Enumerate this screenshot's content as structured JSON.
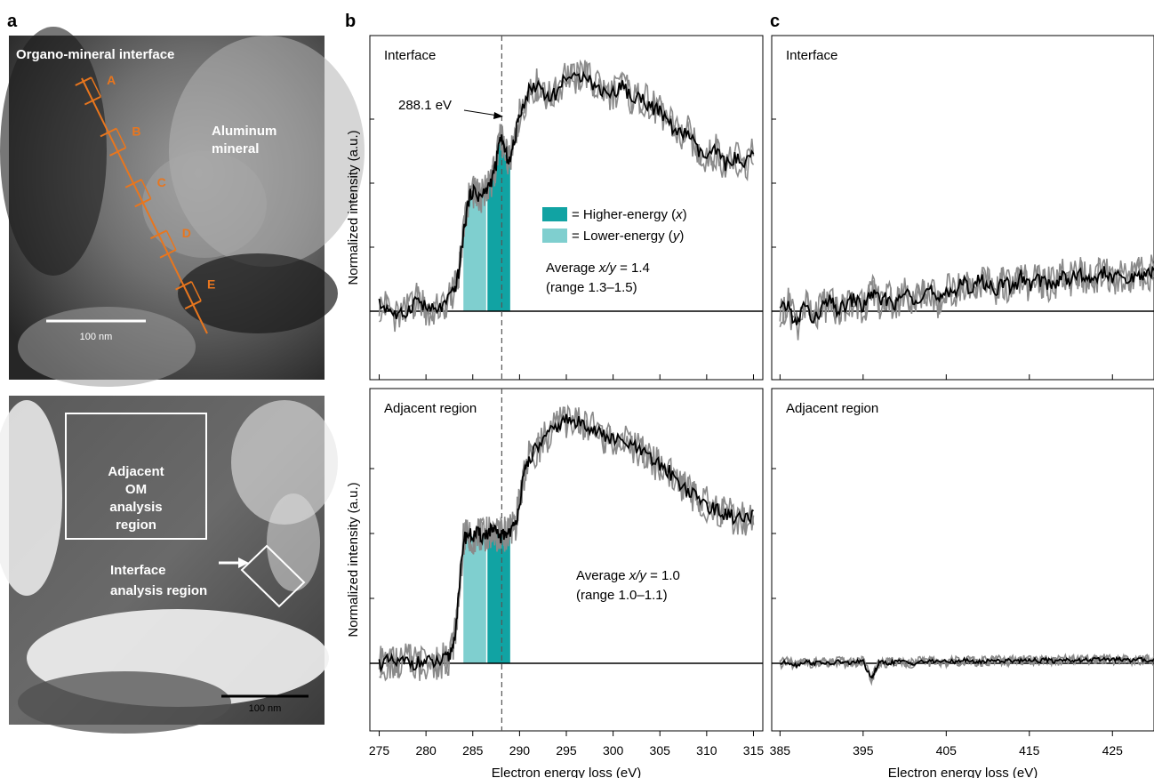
{
  "panel_letters": {
    "a": "a",
    "b": "b",
    "c": "c"
  },
  "panel_a": {
    "top_image": {
      "title": "Organo-mineral interface",
      "mineral_label": [
        "Aluminum",
        "mineral"
      ],
      "scale_bar": "100 nm",
      "points": [
        "A",
        "B",
        "C",
        "D",
        "E"
      ],
      "accent_color": "#e8761e"
    },
    "bottom_image": {
      "om_box_label": [
        "Adjacent",
        "OM",
        "analysis",
        "region"
      ],
      "interface_label": [
        "Interface",
        "analysis region"
      ],
      "scale_bar": "100 nm"
    }
  },
  "legend": {
    "higher": "= Higher-energy (",
    "higher_var": "x",
    "lower": "= Lower-energy (",
    "lower_var": "y",
    "close": ")",
    "higher_color": "#11a3a3",
    "lower_color": "#7fcfcf"
  },
  "annotations": {
    "peak_label": "288.1 eV",
    "interface_avg_prefix": "Average ",
    "interface_avg_var": "x/y",
    "interface_avg_value": " = 1.4",
    "interface_range": "(range 1.3–1.5)",
    "adjacent_avg_prefix": "Average ",
    "adjacent_avg_var": "x/y",
    "adjacent_avg_value": " = 1.0",
    "adjacent_range": "(range 1.0–1.1)"
  },
  "chart_data": [
    {
      "type": "line",
      "panel": "b-top",
      "title": "Interface",
      "xlabel": "",
      "ylabel": "Normalized intensity (a.u.)",
      "xlim": [
        274,
        316
      ],
      "ylim": [
        -1.1,
        4.1
      ],
      "dashed_line_x": 288.1,
      "shaded_regions": [
        {
          "name": "Lower-energy (y)",
          "x": [
            284,
            286.5
          ],
          "color": "#7fcfcf"
        },
        {
          "name": "Higher-energy (x)",
          "x": [
            286.5,
            289
          ],
          "color": "#11a3a3"
        }
      ],
      "series": [
        {
          "x": [
            275,
            276,
            277,
            278,
            279,
            280,
            281,
            282,
            283,
            283.5,
            284,
            284.5,
            285,
            285.5,
            286,
            286.5,
            287,
            287.5,
            288,
            288.5,
            289,
            289.5,
            290,
            291,
            292,
            293,
            294,
            295,
            296,
            297,
            298,
            299,
            300,
            301,
            302,
            303,
            304,
            305,
            306,
            307,
            308,
            309,
            310,
            311,
            312,
            313,
            314,
            315
          ],
          "values": [
            0.1,
            0.05,
            -0.1,
            0.0,
            0.2,
            0.05,
            0.0,
            0.1,
            0.3,
            0.6,
            1.2,
            1.7,
            1.9,
            1.8,
            1.8,
            1.9,
            2.05,
            2.3,
            2.75,
            2.45,
            2.35,
            2.7,
            3.1,
            3.45,
            3.55,
            3.35,
            3.4,
            3.7,
            3.6,
            3.75,
            3.5,
            3.45,
            3.4,
            3.55,
            3.3,
            3.35,
            3.2,
            3.1,
            2.95,
            2.75,
            2.8,
            2.5,
            2.4,
            2.5,
            2.3,
            2.4,
            2.25,
            2.45
          ]
        }
      ]
    },
    {
      "type": "line",
      "panel": "c-top",
      "title": "Interface",
      "xlabel": "",
      "ylabel": "",
      "xlim": [
        384,
        430
      ],
      "ylim": [
        -1.1,
        4.1
      ],
      "series": [
        {
          "x": [
            385,
            386,
            387,
            388,
            389,
            390,
            391,
            392,
            393,
            394,
            395,
            396,
            397,
            398,
            399,
            400,
            401,
            402,
            403,
            404,
            405,
            406,
            407,
            408,
            409,
            410,
            411,
            412,
            413,
            414,
            415,
            416,
            417,
            418,
            419,
            420,
            421,
            422,
            423,
            424,
            425,
            426,
            427,
            428,
            429,
            430
          ],
          "values": [
            0.0,
            0.1,
            -0.25,
            0.15,
            -0.2,
            0.05,
            0.15,
            0.0,
            0.1,
            0.2,
            0.05,
            0.3,
            0.15,
            0.2,
            0.1,
            0.3,
            0.2,
            0.25,
            0.35,
            0.1,
            0.35,
            0.3,
            0.45,
            0.35,
            0.5,
            0.4,
            0.35,
            0.45,
            0.35,
            0.55,
            0.4,
            0.5,
            0.45,
            0.4,
            0.55,
            0.5,
            0.6,
            0.45,
            0.55,
            0.6,
            0.5,
            0.55,
            0.45,
            0.6,
            0.55,
            0.65
          ]
        }
      ]
    },
    {
      "type": "line",
      "panel": "b-bottom",
      "title": "Adjacent region",
      "xlabel": "Electron energy loss (eV)",
      "ylabel": "Normalized intensity (a.u.)",
      "xlim": [
        274,
        316
      ],
      "ylim": [
        -1.1,
        4.1
      ],
      "x_ticks": [
        275,
        280,
        285,
        290,
        295,
        300,
        305,
        310,
        315
      ],
      "dashed_line_x": 288.1,
      "shaded_regions": [
        {
          "name": "Lower-energy (y)",
          "x": [
            284,
            286.5
          ],
          "color": "#7fcfcf"
        },
        {
          "name": "Higher-energy (x)",
          "x": [
            286.5,
            289
          ],
          "color": "#11a3a3"
        }
      ],
      "series": [
        {
          "x": [
            275,
            276,
            277,
            278,
            279,
            280,
            281,
            282,
            282.5,
            283,
            283.5,
            284,
            284.5,
            285,
            285.5,
            286,
            286.5,
            287,
            287.5,
            288,
            288.5,
            289,
            289.5,
            290,
            290.5,
            291,
            292,
            293,
            294,
            295,
            296,
            297,
            298,
            299,
            300,
            301,
            302,
            303,
            304,
            305,
            306,
            307,
            308,
            309,
            310,
            311,
            312,
            313,
            314,
            315
          ],
          "values": [
            0.0,
            0.02,
            0.0,
            0.03,
            0.0,
            0.02,
            0.0,
            0.05,
            0.1,
            0.35,
            1.0,
            1.9,
            2.0,
            1.95,
            2.0,
            1.95,
            2.0,
            2.05,
            2.0,
            1.95,
            2.0,
            2.05,
            2.1,
            2.5,
            2.9,
            3.15,
            3.35,
            3.5,
            3.65,
            3.75,
            3.7,
            3.7,
            3.6,
            3.5,
            3.45,
            3.4,
            3.35,
            3.25,
            3.15,
            3.05,
            2.95,
            2.8,
            2.65,
            2.55,
            2.45,
            2.35,
            2.3,
            2.25,
            2.2,
            2.25
          ]
        }
      ]
    },
    {
      "type": "line",
      "panel": "c-bottom",
      "title": "Adjacent region",
      "xlabel": "Electron energy loss (eV)",
      "ylabel": "",
      "xlim": [
        384,
        430
      ],
      "ylim": [
        -1.1,
        4.1
      ],
      "x_ticks": [
        385,
        395,
        405,
        415,
        425
      ],
      "series": [
        {
          "x": [
            385,
            386,
            387,
            388,
            389,
            390,
            391,
            392,
            393,
            394,
            395,
            396,
            396.5,
            397,
            398,
            399,
            400,
            401,
            402,
            403,
            404,
            405,
            406,
            407,
            408,
            409,
            410,
            411,
            412,
            413,
            414,
            415,
            416,
            417,
            418,
            419,
            420,
            421,
            422,
            423,
            424,
            425,
            426,
            427,
            428,
            429,
            430
          ],
          "values": [
            0.0,
            0.02,
            -0.03,
            0.03,
            0.0,
            0.02,
            -0.02,
            0.03,
            0.0,
            0.02,
            0.03,
            -0.25,
            -0.1,
            0.02,
            0.0,
            0.03,
            0.02,
            0.0,
            0.03,
            0.02,
            0.04,
            0.02,
            0.03,
            0.05,
            0.03,
            0.02,
            0.04,
            0.05,
            0.03,
            0.05,
            0.04,
            0.06,
            0.04,
            0.05,
            0.03,
            0.06,
            0.05,
            0.04,
            0.06,
            0.05,
            0.07,
            0.05,
            0.06,
            0.04,
            0.06,
            0.05,
            0.06
          ]
        }
      ]
    }
  ]
}
